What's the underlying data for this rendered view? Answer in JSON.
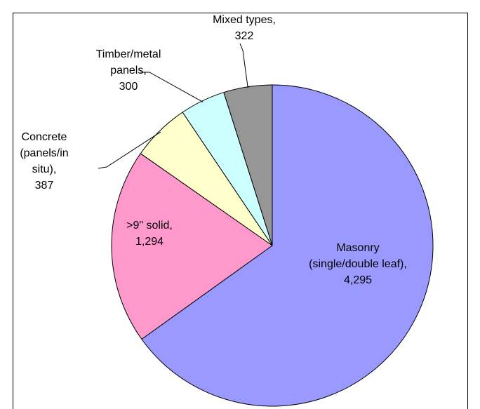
{
  "chart_data": {
    "type": "pie",
    "categories": [
      "Masonry (single/double leaf),",
      ">9\" solid,",
      "Concrete (panels/in situ),",
      "Timber/metal panels,",
      "Mixed types,"
    ],
    "values": [
      4295,
      1294,
      387,
      300,
      322
    ],
    "value_labels": [
      "4,295",
      "1,294",
      "387",
      "300",
      "322"
    ],
    "colors": [
      "#9999ff",
      "#ff99cc",
      "#ffffcc",
      "#ccffff",
      "#969696"
    ]
  }
}
